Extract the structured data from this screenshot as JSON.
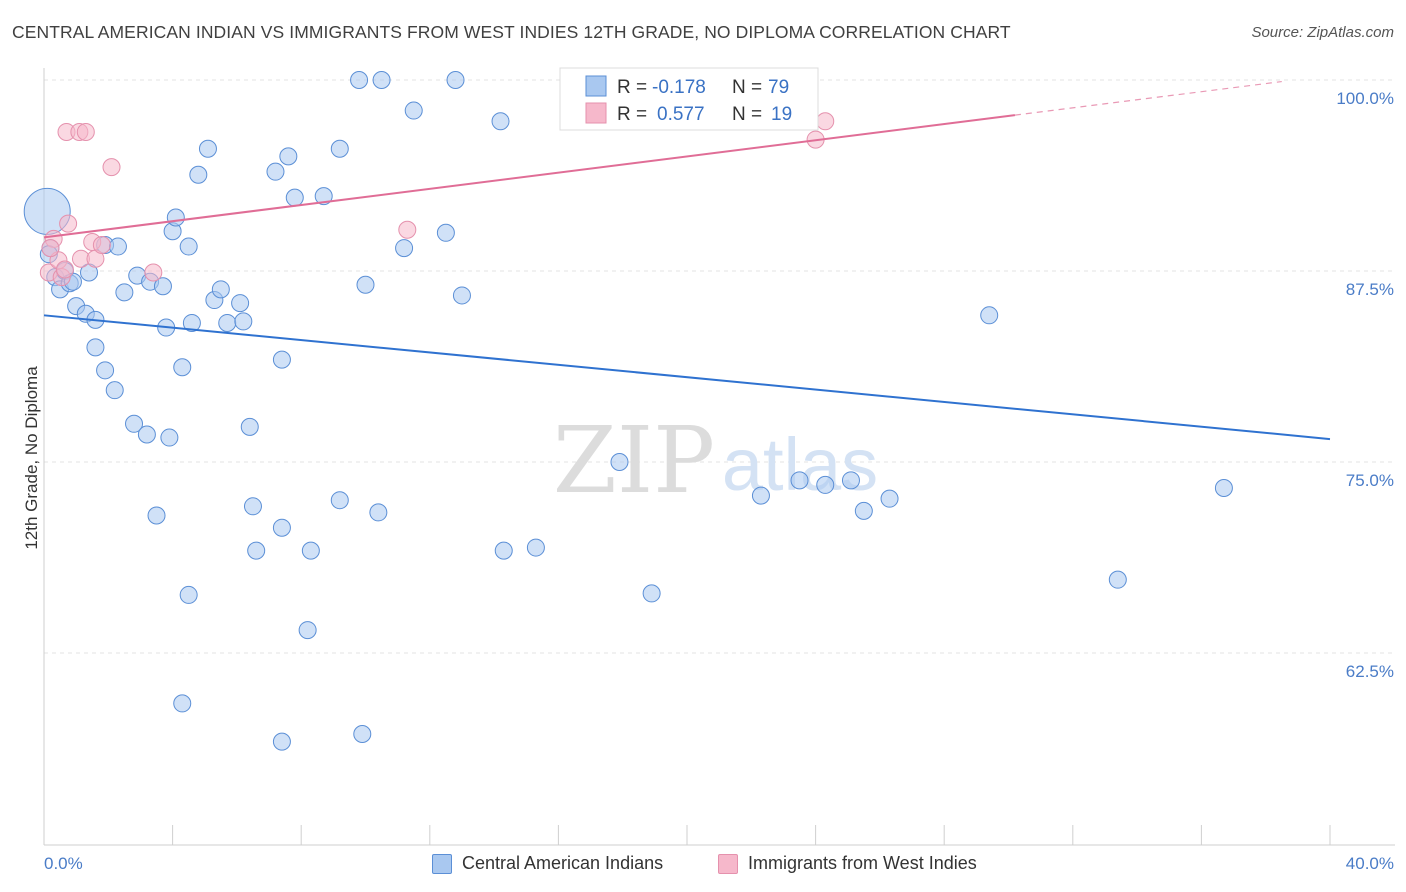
{
  "header": {
    "title": "CENTRAL AMERICAN INDIAN VS IMMIGRANTS FROM WEST INDIES 12TH GRADE, NO DIPLOMA CORRELATION CHART",
    "source": "Source: ZipAtlas.com"
  },
  "watermark": {
    "zip": "ZIP",
    "atlas": "atlas"
  },
  "stats": {
    "r_label": "R =",
    "n_label": "N =",
    "rows": [
      {
        "r": "-0.178",
        "n": "79"
      },
      {
        "r": "0.577",
        "n": "19"
      }
    ]
  },
  "legend": {
    "items": [
      {
        "label": "Central American Indians"
      },
      {
        "label": "Immigrants from West Indies"
      }
    ]
  },
  "colors": {
    "blue_fill": "#a9c8f0",
    "blue_stroke": "#5b8fd6",
    "blue_line": "#2f72d0",
    "pink_fill": "#f6b8cb",
    "pink_stroke": "#e591ad",
    "pink_line": "#e06d96",
    "axis_label": "#4a7cc7",
    "grid": "#e3e3e3"
  },
  "chart_data": {
    "type": "scatter",
    "title": "CENTRAL AMERICAN INDIAN VS IMMIGRANTS FROM WEST INDIES 12TH GRADE, NO DIPLOMA CORRELATION CHART",
    "xlabel": "",
    "ylabel": "12th Grade, No Diploma",
    "xlim": [
      0,
      40
    ],
    "ylim": [
      50,
      101
    ],
    "x_ticks": [
      0,
      4,
      8,
      12,
      16,
      20,
      24,
      28,
      32,
      36,
      40
    ],
    "x_tick_labels": [
      "0.0%",
      "",
      "",
      "",
      "",
      "",
      "",
      "",
      "",
      "",
      "40.0%"
    ],
    "y_ticks": [
      62.5,
      75.0,
      87.5,
      100.0
    ],
    "y_tick_labels": [
      "62.5%",
      "75.0%",
      "87.5%",
      "100.0%"
    ],
    "grid": true,
    "legend_position": "bottom",
    "series": [
      {
        "name": "Central American Indians",
        "color": "#a9c8f0",
        "points": [
          [
            0.2,
            89.0
          ],
          [
            0.35,
            87.1
          ],
          [
            0.5,
            86.3
          ],
          [
            0.65,
            87.5
          ],
          [
            0.8,
            86.7
          ],
          [
            0.9,
            86.8
          ],
          [
            1.0,
            85.2
          ],
          [
            1.3,
            84.7
          ],
          [
            1.4,
            87.4
          ],
          [
            1.6,
            84.3
          ],
          [
            1.9,
            89.2
          ],
          [
            2.3,
            89.1
          ],
          [
            1.6,
            82.5
          ],
          [
            1.9,
            81.0
          ],
          [
            2.2,
            79.7
          ],
          [
            2.5,
            86.1
          ],
          [
            2.8,
            77.5
          ],
          [
            2.9,
            87.2
          ],
          [
            3.2,
            76.8
          ],
          [
            3.3,
            86.8
          ],
          [
            3.7,
            86.5
          ],
          [
            3.8,
            83.8
          ],
          [
            3.9,
            76.6
          ],
          [
            4.0,
            90.1
          ],
          [
            4.1,
            91.0
          ],
          [
            4.3,
            81.2
          ],
          [
            4.5,
            89.1
          ],
          [
            4.6,
            84.1
          ],
          [
            4.8,
            93.8
          ],
          [
            5.1,
            95.5
          ],
          [
            5.3,
            85.6
          ],
          [
            5.5,
            86.3
          ],
          [
            5.7,
            84.1
          ],
          [
            6.1,
            85.4
          ],
          [
            6.2,
            84.2
          ],
          [
            6.4,
            77.3
          ],
          [
            6.6,
            69.2
          ],
          [
            7.2,
            94.0
          ],
          [
            7.4,
            81.7
          ],
          [
            7.6,
            95.0
          ],
          [
            7.8,
            92.3
          ],
          [
            8.7,
            92.4
          ],
          [
            9.2,
            95.5
          ],
          [
            9.8,
            100.0
          ],
          [
            10.0,
            86.6
          ],
          [
            10.5,
            100.0
          ],
          [
            11.5,
            98.0
          ],
          [
            11.2,
            89.0
          ],
          [
            12.5,
            90.0
          ],
          [
            12.8,
            100.0
          ],
          [
            13.0,
            85.9
          ],
          [
            14.2,
            97.3
          ],
          [
            17.8,
            100.0
          ],
          [
            17.9,
            75.0
          ],
          [
            22.3,
            72.8
          ],
          [
            23.5,
            73.8
          ],
          [
            24.3,
            73.5
          ],
          [
            25.1,
            73.8
          ],
          [
            25.5,
            71.8
          ],
          [
            26.3,
            72.6
          ],
          [
            29.4,
            84.6
          ],
          [
            36.7,
            73.3
          ],
          [
            6.5,
            72.1
          ],
          [
            7.4,
            70.7
          ],
          [
            8.3,
            69.2
          ],
          [
            9.2,
            72.5
          ],
          [
            10.4,
            71.7
          ],
          [
            14.3,
            69.2
          ],
          [
            15.3,
            69.4
          ],
          [
            18.9,
            66.4
          ],
          [
            4.5,
            66.3
          ],
          [
            8.2,
            64.0
          ],
          [
            4.3,
            59.2
          ],
          [
            7.4,
            56.7
          ],
          [
            9.9,
            57.2
          ],
          [
            33.4,
            67.3
          ],
          [
            3.5,
            71.5
          ],
          [
            0.15,
            88.6
          ],
          [
            0.1,
            91.4
          ]
        ]
      },
      {
        "name": "Immigrants from West Indies",
        "color": "#f6b8cb",
        "points": [
          [
            0.15,
            87.4
          ],
          [
            0.3,
            89.6
          ],
          [
            0.45,
            88.2
          ],
          [
            0.55,
            87.1
          ],
          [
            0.65,
            87.6
          ],
          [
            0.7,
            96.6
          ],
          [
            0.75,
            90.6
          ],
          [
            1.1,
            96.6
          ],
          [
            1.15,
            88.3
          ],
          [
            1.3,
            96.6
          ],
          [
            1.5,
            89.4
          ],
          [
            1.6,
            88.3
          ],
          [
            1.8,
            89.2
          ],
          [
            2.1,
            94.3
          ],
          [
            3.4,
            87.4
          ],
          [
            11.3,
            90.2
          ],
          [
            24.0,
            96.1
          ],
          [
            24.3,
            97.3
          ],
          [
            0.2,
            89.0
          ]
        ]
      }
    ],
    "trend_lines": [
      {
        "series": "Central American Indians",
        "x": [
          0,
          40
        ],
        "y": [
          84.6,
          76.5
        ]
      },
      {
        "series": "Immigrants from West Indies",
        "x": [
          0,
          30.2
        ],
        "y": [
          89.7,
          97.7
        ],
        "dashed_extension_to_x": 38.5
      }
    ],
    "bubble_sizes": {
      "Central American Indians": [
        [
          0.1,
          91.4,
          "large"
        ]
      ]
    }
  }
}
